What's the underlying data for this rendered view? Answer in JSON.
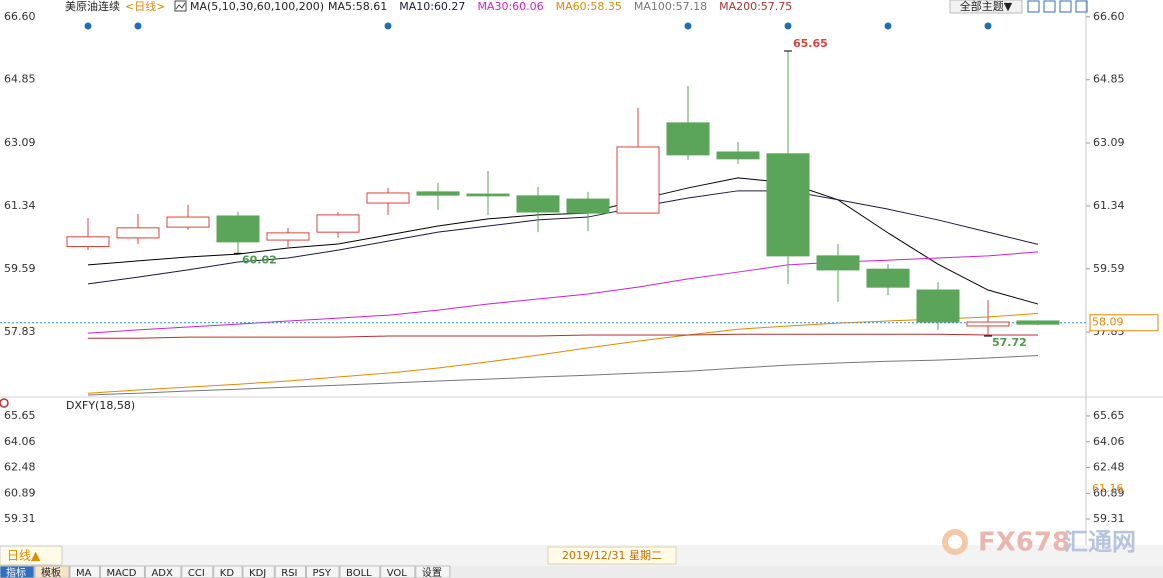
{
  "header": {
    "symbol": "美原油连续",
    "period": "<日线>",
    "theme_button": "全部主题▼"
  },
  "chart_data": [
    {
      "type": "candlestick",
      "indicator": "MA(5,10,30,60,100,200)",
      "ylim": [
        56.08,
        66.79
      ],
      "yticks": [
        {
          "value": 66.6,
          "label": "66.60"
        },
        64.85,
        63.09,
        61.34,
        59.59,
        57.83
      ],
      "up_color": "#d9443c",
      "down_color": "#5aa55a",
      "candles": {
        "open": [
          60.21,
          60.45,
          60.75,
          61.06,
          60.39,
          60.61,
          61.42,
          61.73,
          61.67,
          61.62,
          61.53,
          61.14,
          63.65,
          62.84,
          62.79,
          59.95,
          59.58,
          59.0,
          58.0,
          58.14
        ],
        "high": [
          61.0,
          61.12,
          61.37,
          61.17,
          60.73,
          61.17,
          61.84,
          61.98,
          62.31,
          61.87,
          61.73,
          64.07,
          64.68,
          63.12,
          65.65,
          60.28,
          59.72,
          59.22,
          58.72,
          58.16
        ],
        "low": [
          60.11,
          60.28,
          60.67,
          60.02,
          60.2,
          60.45,
          61.09,
          61.23,
          61.09,
          60.61,
          60.64,
          61.14,
          62.62,
          62.51,
          59.17,
          58.67,
          58.86,
          57.89,
          57.72,
          58.03
        ],
        "close": [
          60.48,
          60.73,
          61.03,
          60.34,
          60.59,
          61.09,
          61.7,
          61.64,
          61.62,
          61.17,
          61.14,
          62.98,
          62.76,
          62.65,
          59.95,
          59.56,
          59.08,
          58.11,
          58.11,
          58.05
        ]
      },
      "high_label_color": "#d9443c",
      "low_label_color": "#4c9a4c",
      "series": [
        {
          "name": "MA5:58.61",
          "color": "#000000",
          "values": [
            59.7,
            59.81,
            59.92,
            60.0,
            60.17,
            60.28,
            60.53,
            60.78,
            60.98,
            61.09,
            61.14,
            61.51,
            61.84,
            62.12,
            61.98,
            61.51,
            60.59,
            59.72,
            59.0,
            58.61
          ]
        },
        {
          "name": "MA10:60.27",
          "color": "#1a1a40",
          "values": [
            59.17,
            59.36,
            59.56,
            59.78,
            59.89,
            60.11,
            60.36,
            60.61,
            60.78,
            60.95,
            61.03,
            61.31,
            61.56,
            61.76,
            61.76,
            61.51,
            61.25,
            60.95,
            60.61,
            60.27
          ]
        },
        {
          "name": "MA30:60.06",
          "color": "#d020d0",
          "values": [
            57.8,
            57.89,
            57.97,
            58.05,
            58.14,
            58.22,
            58.3,
            58.44,
            58.61,
            58.75,
            58.89,
            59.08,
            59.31,
            59.5,
            59.7,
            59.78,
            59.83,
            59.89,
            59.95,
            60.06
          ]
        },
        {
          "name": "MA60:58.35",
          "color": "#e08a00",
          "values": [
            56.13,
            56.22,
            56.3,
            56.38,
            56.47,
            56.58,
            56.69,
            56.83,
            57.0,
            57.19,
            57.39,
            57.58,
            57.75,
            57.91,
            58.0,
            58.08,
            58.14,
            58.19,
            58.25,
            58.35
          ]
        },
        {
          "name": "MA100:57.18",
          "color": "#777777",
          "values": [
            56.08,
            56.13,
            56.19,
            56.24,
            56.3,
            56.35,
            56.41,
            56.47,
            56.52,
            56.58,
            56.63,
            56.69,
            56.74,
            56.83,
            56.91,
            56.97,
            57.02,
            57.05,
            57.11,
            57.18
          ]
        },
        {
          "name": "MA200:57.75",
          "color": "#b03030",
          "values": [
            57.66,
            57.66,
            57.69,
            57.69,
            57.69,
            57.69,
            57.72,
            57.72,
            57.72,
            57.72,
            57.75,
            57.75,
            57.75,
            57.77,
            57.77,
            57.77,
            57.77,
            57.77,
            57.75,
            57.75
          ]
        }
      ],
      "current": 58.09,
      "current_color": "#e08a00"
    },
    {
      "type": "line",
      "title": "DXFY(18,58)",
      "ylim": [
        57.71,
        66.63
      ],
      "yticks": [
        65.65,
        64.06,
        62.48,
        60.89,
        59.31
      ],
      "current": 61.16,
      "current_color": "#e08a00"
    }
  ],
  "footer": {
    "period_button": "日线▲",
    "date": "2019/12/31 星期二",
    "tabs": [
      "指标",
      "模板",
      "MA",
      "MACD",
      "ADX",
      "CCI",
      "KD",
      "KDJ",
      "RSI",
      "PSY",
      "BOLL",
      "VOL",
      "设置"
    ],
    "watermark": "FX678",
    "watermark_cn": "汇通网"
  }
}
